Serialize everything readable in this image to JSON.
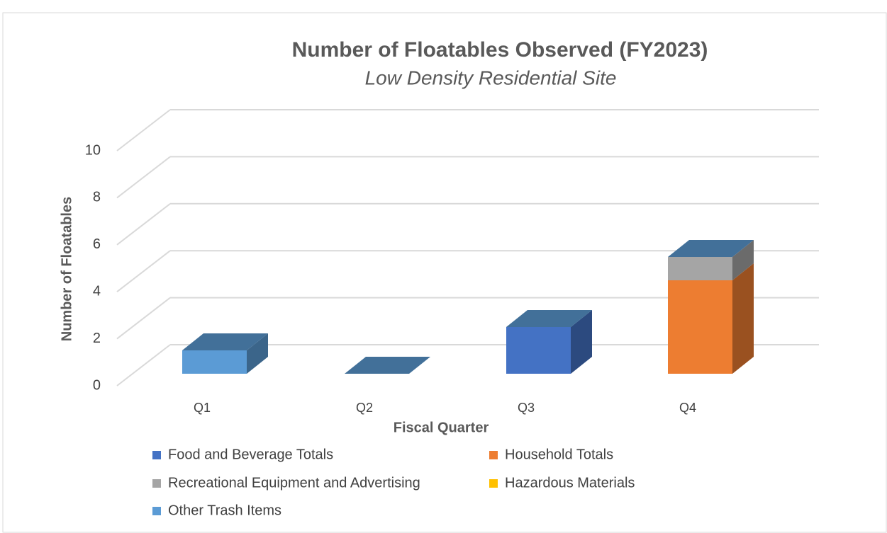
{
  "chart_data": {
    "type": "bar3d_stacked",
    "title": "Number of Floatables Observed (FY2023)",
    "subtitle": "Low Density Residential Site",
    "x_label": "Fiscal Quarter",
    "y_label": "Number of Floatables",
    "categories": [
      "Q1",
      "Q2",
      "Q3",
      "Q4"
    ],
    "series": [
      {
        "name": "Food and Beverage Totals",
        "color": "#4472c4",
        "values": [
          0,
          0,
          2,
          0
        ]
      },
      {
        "name": "Household Totals",
        "color": "#ed7d31",
        "values": [
          0,
          0,
          0,
          4
        ]
      },
      {
        "name": "Recreational Equipment and Advertising",
        "color": "#a5a5a5",
        "values": [
          0,
          0,
          0,
          1
        ]
      },
      {
        "name": "Hazardous Materials",
        "color": "#ffc000",
        "values": [
          0,
          0,
          0,
          0
        ]
      },
      {
        "name": "Other Trash Items",
        "color": "#5b9bd5",
        "values": [
          1,
          0,
          0,
          0
        ]
      }
    ],
    "ylim": [
      0,
      10
    ],
    "yticks": [
      0,
      2,
      4,
      6,
      8,
      10
    ],
    "grid": true,
    "legend": "bottom"
  }
}
